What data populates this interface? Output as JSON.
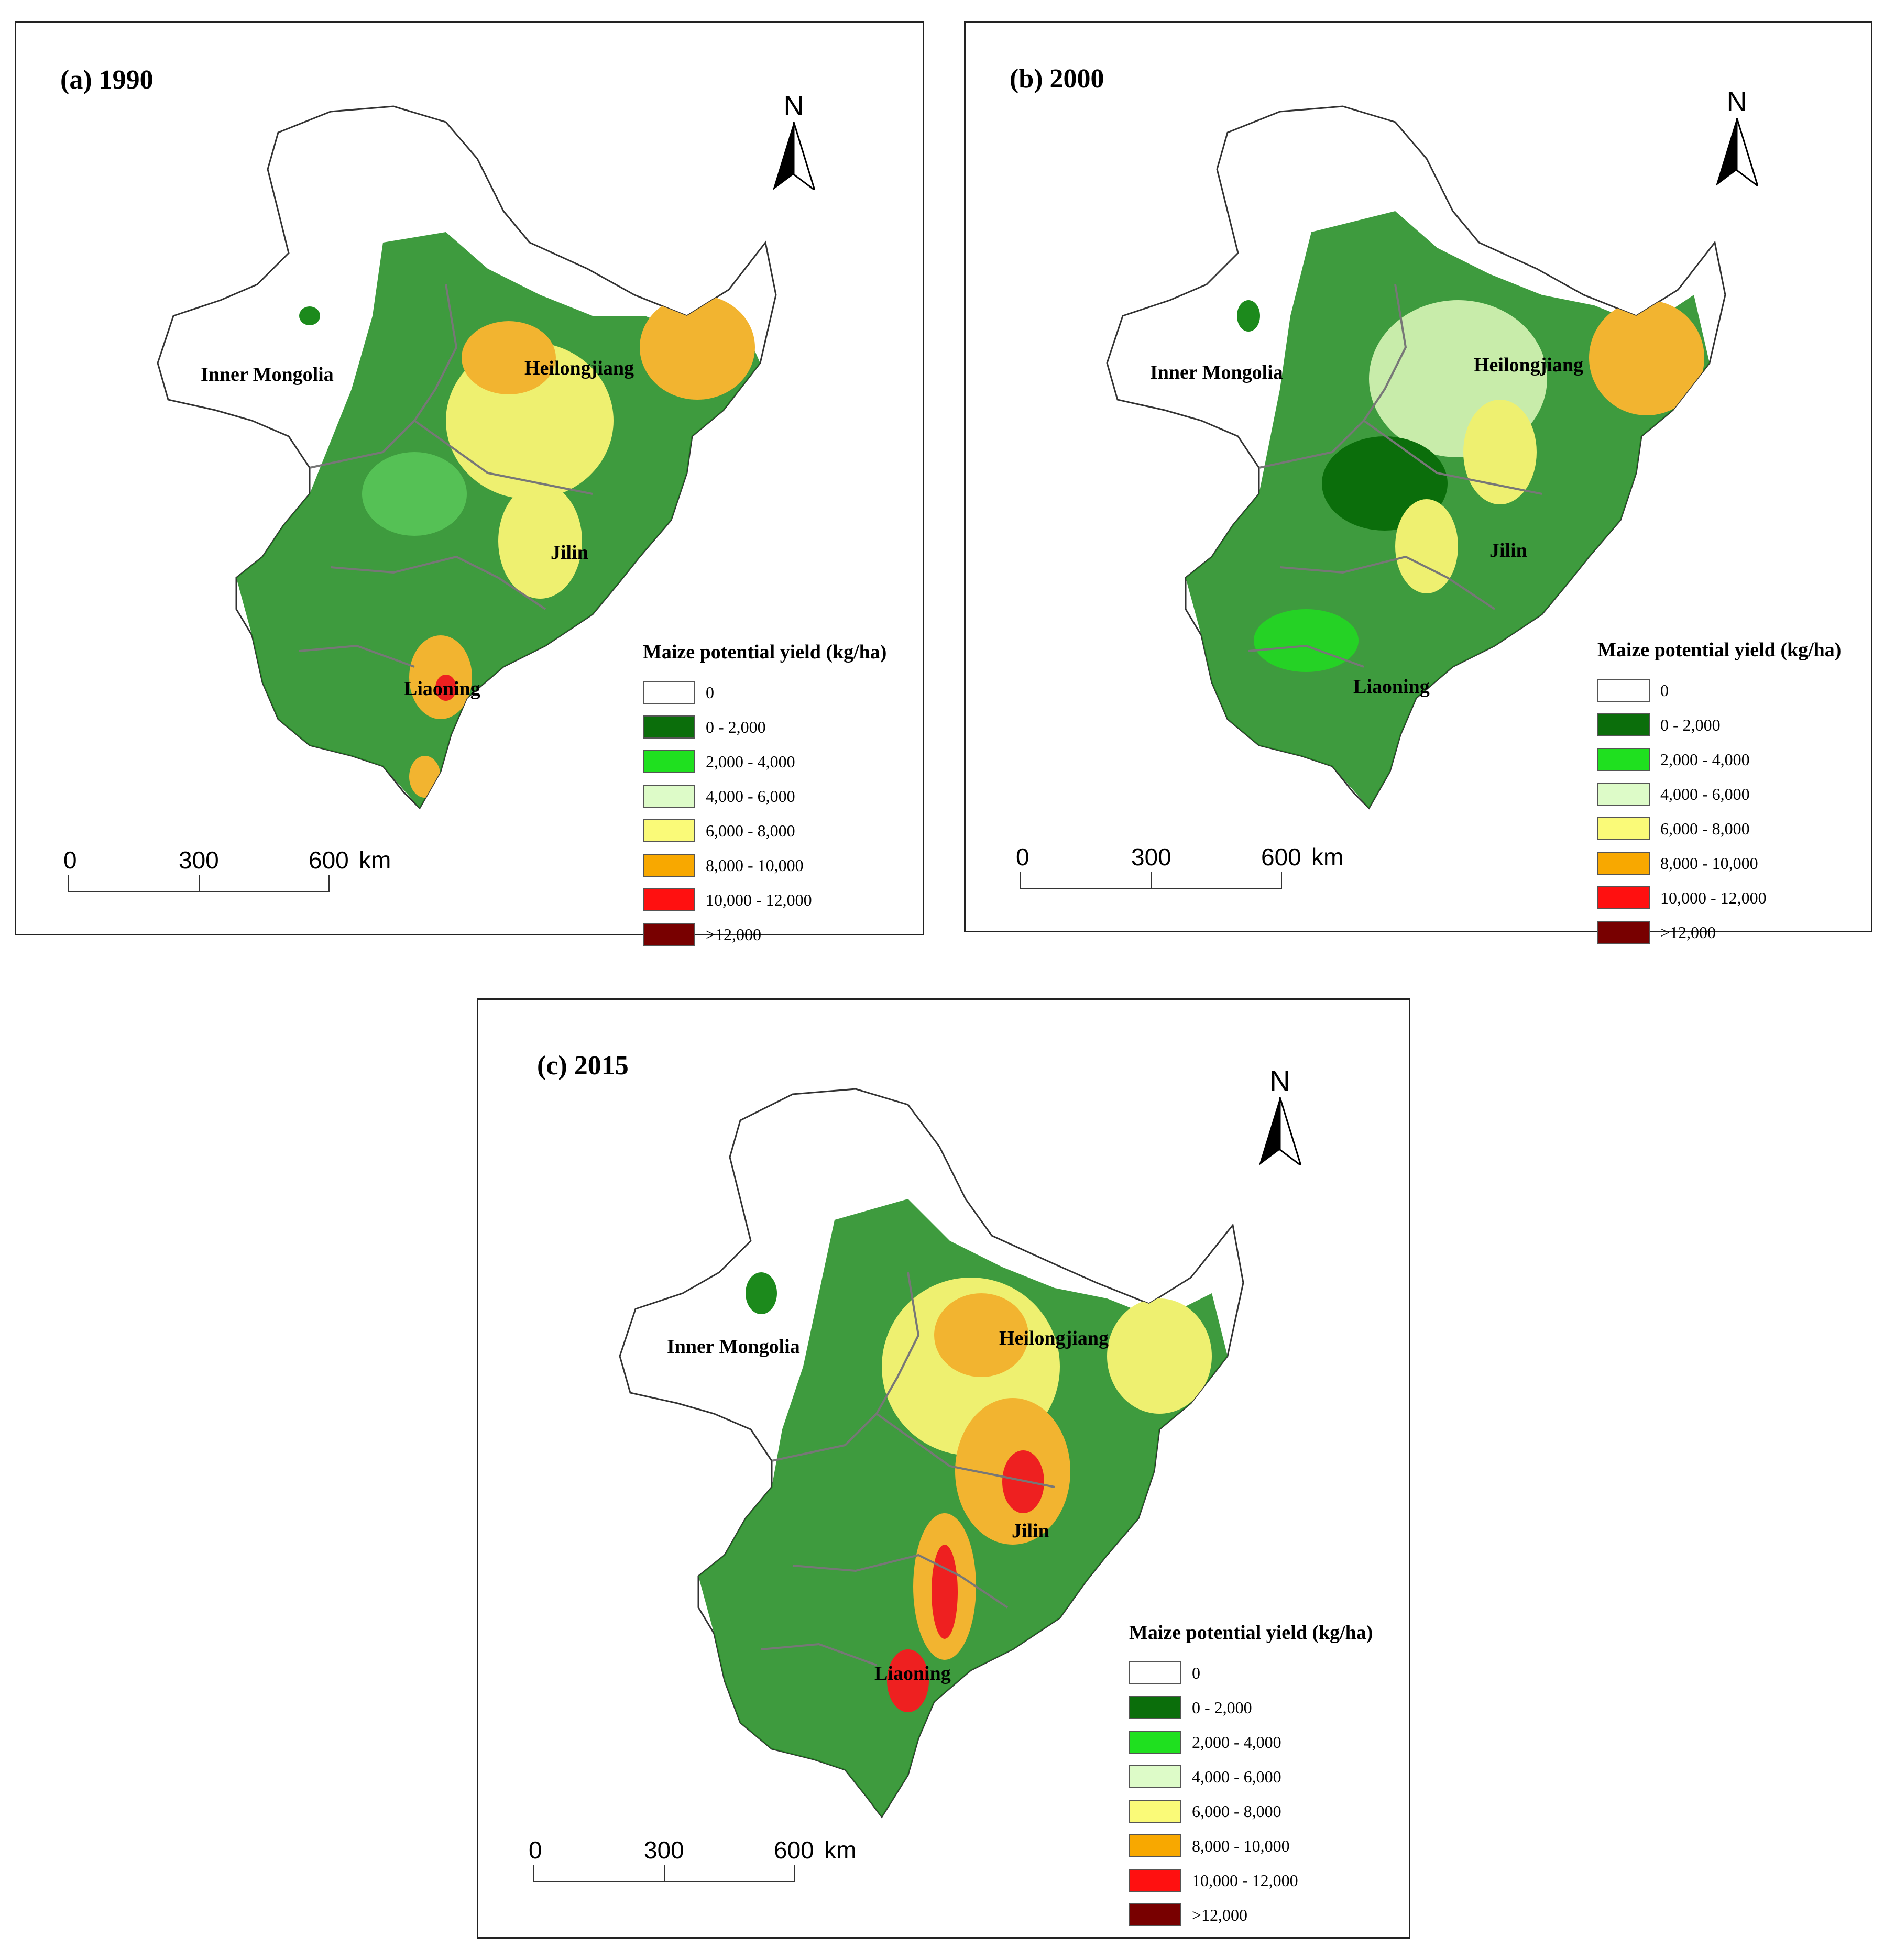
{
  "panels": [
    {
      "title": "(a) 1990",
      "labels": {
        "inner_mongolia": "Inner Mongolia",
        "heilongjiang": "Heilongjiang",
        "jilin": "Jilin",
        "liaoning": "Liaoning"
      }
    },
    {
      "title": "(b) 2000",
      "labels": {
        "inner_mongolia": "Inner Mongolia",
        "heilongjiang": "Heilongjiang",
        "jilin": "Jilin",
        "liaoning": "Liaoning"
      }
    },
    {
      "title": "(c) 2015",
      "labels": {
        "inner_mongolia": "Inner Mongolia",
        "heilongjiang": "Heilongjiang",
        "jilin": "Jilin",
        "liaoning": "Liaoning"
      }
    }
  ],
  "north_arrow": {
    "letter": "N"
  },
  "scale_bar": {
    "ticks": [
      "0",
      "300",
      "600"
    ],
    "unit": "km"
  },
  "legend": {
    "title": "Maize potential yield (kg/ha)",
    "classes": [
      {
        "label": "0",
        "color": "#ffffff"
      },
      {
        "label": "0 - 2,000",
        "color": "#0b6e0b"
      },
      {
        "label": "2,000 - 4,000",
        "color": "#1fe01f"
      },
      {
        "label": "4,000 - 6,000",
        "color": "#ddfbc8"
      },
      {
        "label": "6,000 - 8,000",
        "color": "#fafa78"
      },
      {
        "label": "8,000 - 10,000",
        "color": "#f8a800"
      },
      {
        "label": "10,000 - 12,000",
        "color": "#ff1010"
      },
      {
        "label": ">12,000",
        "color": "#780000"
      }
    ]
  }
}
